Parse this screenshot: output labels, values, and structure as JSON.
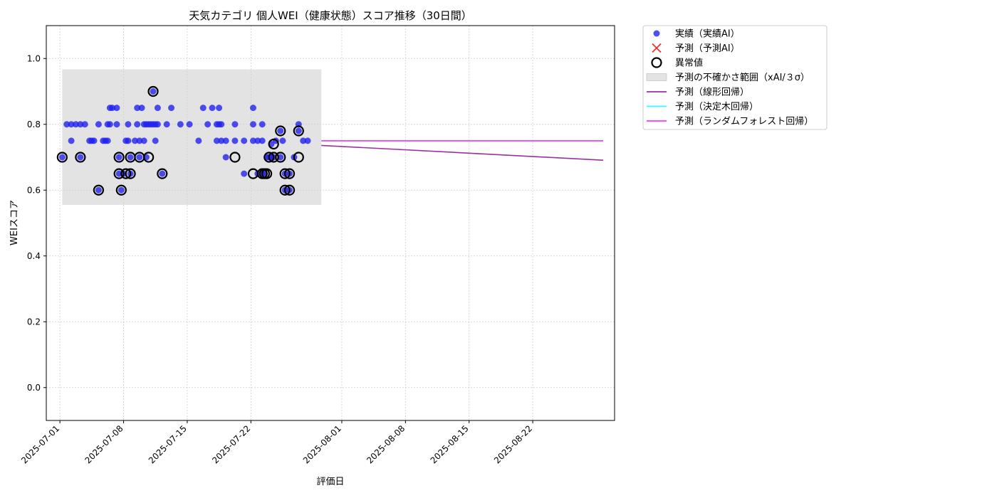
{
  "chart_data": {
    "type": "scatter",
    "title": "天気カテゴリ 個人WEI（健康状態）スコア推移（30日間）",
    "xlabel": "評価日",
    "ylabel": "WEIスコア",
    "xlim": [
      "2025-06-29T12:00",
      "2025-08-31T00:00"
    ],
    "ylim": [
      -0.1,
      1.1
    ],
    "yticks": [
      0.0,
      0.2,
      0.4,
      0.6,
      0.8,
      1.0
    ],
    "yticklabels": [
      "0.0",
      "0.2",
      "0.4",
      "0.6",
      "0.8",
      "1.0"
    ],
    "xticks": [
      "2025-07-01",
      "2025-07-08",
      "2025-07-15",
      "2025-07-22",
      "2025-08-01",
      "2025-08-08",
      "2025-08-15",
      "2025-08-22"
    ],
    "grid": true,
    "legend_placement": "outside-upper-right",
    "uncertainty_band": {
      "label": "予測の不確かさ範囲（xAI/３σ）",
      "x_start": "2025-07-01T06:00",
      "x_end": "2025-07-29T18:00",
      "y_low": 0.555,
      "y_high": 0.967,
      "color": "#d0d0d0"
    },
    "series": [
      {
        "name": "実績（実績AI）",
        "kind": "scatter",
        "color": "#2222ee",
        "points": [
          [
            "2025-07-01T06:00",
            0.7
          ],
          [
            "2025-07-01T18:00",
            0.8
          ],
          [
            "2025-07-02T06:00",
            0.75
          ],
          [
            "2025-07-02T06:00",
            0.8
          ],
          [
            "2025-07-02T18:00",
            0.8
          ],
          [
            "2025-07-03T06:00",
            0.7
          ],
          [
            "2025-07-03T06:00",
            0.8
          ],
          [
            "2025-07-03T18:00",
            0.8
          ],
          [
            "2025-07-04T06:00",
            0.75
          ],
          [
            "2025-07-04T12:00",
            0.75
          ],
          [
            "2025-07-04T18:00",
            0.75
          ],
          [
            "2025-07-05T06:00",
            0.6
          ],
          [
            "2025-07-05T06:00",
            0.8
          ],
          [
            "2025-07-05T18:00",
            0.75
          ],
          [
            "2025-07-06T00:00",
            0.75
          ],
          [
            "2025-07-06T06:00",
            0.8
          ],
          [
            "2025-07-06T06:00",
            0.75
          ],
          [
            "2025-07-06T12:00",
            0.8
          ],
          [
            "2025-07-06T12:00",
            0.85
          ],
          [
            "2025-07-06T18:00",
            0.85
          ],
          [
            "2025-07-07T06:00",
            0.85
          ],
          [
            "2025-07-07T06:00",
            0.8
          ],
          [
            "2025-07-07T12:00",
            0.7
          ],
          [
            "2025-07-07T12:00",
            0.65
          ],
          [
            "2025-07-07T18:00",
            0.6
          ],
          [
            "2025-07-08T00:00",
            0.65
          ],
          [
            "2025-07-08T06:00",
            0.75
          ],
          [
            "2025-07-08T12:00",
            0.8
          ],
          [
            "2025-07-08T12:00",
            0.75
          ],
          [
            "2025-07-08T18:00",
            0.7
          ],
          [
            "2025-07-08T18:00",
            0.65
          ],
          [
            "2025-07-09T06:00",
            0.75
          ],
          [
            "2025-07-09T12:00",
            0.85
          ],
          [
            "2025-07-09T12:00",
            0.8
          ],
          [
            "2025-07-09T18:00",
            0.75
          ],
          [
            "2025-07-09T18:00",
            0.7
          ],
          [
            "2025-07-10T00:00",
            0.85
          ],
          [
            "2025-07-10T06:00",
            0.75
          ],
          [
            "2025-07-10T06:00",
            0.8
          ],
          [
            "2025-07-10T12:00",
            0.7
          ],
          [
            "2025-07-10T12:00",
            0.8
          ],
          [
            "2025-07-10T18:00",
            0.8
          ],
          [
            "2025-07-11T00:00",
            0.8
          ],
          [
            "2025-07-11T06:00",
            0.9
          ],
          [
            "2025-07-11T06:00",
            0.8
          ],
          [
            "2025-07-11T12:00",
            0.75
          ],
          [
            "2025-07-11T12:00",
            0.8
          ],
          [
            "2025-07-11T18:00",
            0.85
          ],
          [
            "2025-07-11T18:00",
            0.8
          ],
          [
            "2025-07-12T06:00",
            0.65
          ],
          [
            "2025-07-12T18:00",
            0.8
          ],
          [
            "2025-07-13T06:00",
            0.85
          ],
          [
            "2025-07-14T06:00",
            0.8
          ],
          [
            "2025-07-15T06:00",
            0.8
          ],
          [
            "2025-07-16T06:00",
            0.75
          ],
          [
            "2025-07-16T18:00",
            0.85
          ],
          [
            "2025-07-17T06:00",
            0.8
          ],
          [
            "2025-07-17T18:00",
            0.85
          ],
          [
            "2025-07-18T06:00",
            0.8
          ],
          [
            "2025-07-18T06:00",
            0.75
          ],
          [
            "2025-07-18T12:00",
            0.85
          ],
          [
            "2025-07-18T12:00",
            0.8
          ],
          [
            "2025-07-18T18:00",
            0.75
          ],
          [
            "2025-07-18T18:00",
            0.8
          ],
          [
            "2025-07-19T06:00",
            0.7
          ],
          [
            "2025-07-19T06:00",
            0.75
          ],
          [
            "2025-07-20T06:00",
            0.75
          ],
          [
            "2025-07-20T06:00",
            0.8
          ],
          [
            "2025-07-21T06:00",
            0.75
          ],
          [
            "2025-07-21T06:00",
            0.65
          ],
          [
            "2025-07-22T06:00",
            0.75
          ],
          [
            "2025-07-22T06:00",
            0.8
          ],
          [
            "2025-07-22T06:00",
            0.85
          ],
          [
            "2025-07-22T18:00",
            0.75
          ],
          [
            "2025-07-22T18:00",
            0.65
          ],
          [
            "2025-07-23T06:00",
            0.65
          ],
          [
            "2025-07-23T06:00",
            0.75
          ],
          [
            "2025-07-23T06:00",
            0.8
          ],
          [
            "2025-07-23T12:00",
            0.65
          ],
          [
            "2025-07-23T18:00",
            0.7
          ],
          [
            "2025-07-24T00:00",
            0.7
          ],
          [
            "2025-07-24T06:00",
            0.7
          ],
          [
            "2025-07-24T06:00",
            0.74
          ],
          [
            "2025-07-24T12:00",
            0.7
          ],
          [
            "2025-07-24T18:00",
            0.75
          ],
          [
            "2025-07-25T06:00",
            0.78
          ],
          [
            "2025-07-25T06:00",
            0.7
          ],
          [
            "2025-07-25T12:00",
            0.75
          ],
          [
            "2025-07-25T18:00",
            0.6
          ],
          [
            "2025-07-25T18:00",
            0.65
          ],
          [
            "2025-07-26T06:00",
            0.65
          ],
          [
            "2025-07-26T06:00",
            0.6
          ],
          [
            "2025-07-26T18:00",
            0.7
          ],
          [
            "2025-07-27T06:00",
            0.78
          ],
          [
            "2025-07-27T06:00",
            0.8
          ],
          [
            "2025-07-27T18:00",
            0.75
          ],
          [
            "2025-07-28T06:00",
            0.75
          ]
        ]
      },
      {
        "name": "予測（予測AI）",
        "kind": "scatter-x",
        "color": "#ee3333",
        "points": []
      },
      {
        "name": "異常値",
        "kind": "ring",
        "color": "#000000",
        "points": [
          [
            "2025-07-01T06:00",
            0.7
          ],
          [
            "2025-07-03T06:00",
            0.7
          ],
          [
            "2025-07-05T06:00",
            0.6
          ],
          [
            "2025-07-07T12:00",
            0.7
          ],
          [
            "2025-07-07T12:00",
            0.65
          ],
          [
            "2025-07-07T18:00",
            0.6
          ],
          [
            "2025-07-08T06:00",
            0.65
          ],
          [
            "2025-07-08T18:00",
            0.7
          ],
          [
            "2025-07-08T18:00",
            0.65
          ],
          [
            "2025-07-09T18:00",
            0.7
          ],
          [
            "2025-07-10T18:00",
            0.7
          ],
          [
            "2025-07-11T06:00",
            0.9
          ],
          [
            "2025-07-12T06:00",
            0.65
          ],
          [
            "2025-07-20T06:00",
            0.7
          ],
          [
            "2025-07-22T06:00",
            0.65
          ],
          [
            "2025-07-23T06:00",
            0.65
          ],
          [
            "2025-07-23T12:00",
            0.65
          ],
          [
            "2025-07-23T18:00",
            0.65
          ],
          [
            "2025-07-24T00:00",
            0.7
          ],
          [
            "2025-07-24T12:00",
            0.7
          ],
          [
            "2025-07-24T12:00",
            0.74
          ],
          [
            "2025-07-25T06:00",
            0.78
          ],
          [
            "2025-07-25T06:00",
            0.7
          ],
          [
            "2025-07-25T18:00",
            0.65
          ],
          [
            "2025-07-25T18:00",
            0.6
          ],
          [
            "2025-07-26T06:00",
            0.65
          ],
          [
            "2025-07-26T06:00",
            0.6
          ],
          [
            "2025-07-27T06:00",
            0.78
          ],
          [
            "2025-07-27T06:00",
            0.7
          ]
        ]
      },
      {
        "name": "予測（線形回帰）",
        "kind": "line",
        "color": "#9b30a0",
        "points": [
          [
            "2025-07-29T18:00",
            0.736
          ],
          [
            "2025-08-29T18:00",
            0.691
          ]
        ]
      },
      {
        "name": "予測（決定木回帰）",
        "kind": "line",
        "color": "#33ffff",
        "points": [
          [
            "2025-07-29T18:00",
            0.75
          ],
          [
            "2025-08-29T18:00",
            0.75
          ]
        ]
      },
      {
        "name": "予測（ランダムフォレスト回帰）",
        "kind": "line",
        "color": "#ff33ff",
        "points": [
          [
            "2025-07-29T18:00",
            0.75
          ],
          [
            "2025-08-29T18:00",
            0.75
          ]
        ]
      }
    ]
  }
}
